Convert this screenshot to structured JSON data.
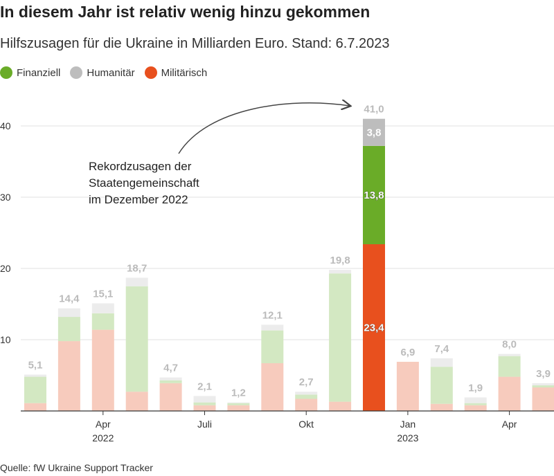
{
  "title": "In diesem Jahr ist relativ wenig hinzu gekommen",
  "subtitle": "Hilfszusagen für die Ukraine in Milliarden Euro. Stand: 6.7.2023",
  "source": "Quelle: fW Ukraine Support Tracker",
  "colors": {
    "finanziell": "#6aac28",
    "humanitaer": "#bdbdbd",
    "militaerisch": "#e8501e",
    "finanziell_light": "#d3e8c2",
    "humanitaer_light": "#ececec",
    "militaerisch_light": "#f7cbbd"
  },
  "legend": [
    {
      "label": "Finanziell",
      "color": "#6aac28"
    },
    {
      "label": "Humanitär",
      "color": "#bdbdbd"
    },
    {
      "label": "Militärisch",
      "color": "#e8501e"
    }
  ],
  "chart_data": {
    "type": "bar",
    "stacked": true,
    "ylim": [
      0,
      43
    ],
    "yticks": [
      10,
      20,
      30,
      40
    ],
    "grid": true,
    "legend_position": "top-left",
    "x": [
      "2022-02",
      "2022-03",
      "2022-04",
      "2022-05",
      "2022-06",
      "2022-07",
      "2022-08",
      "2022-09",
      "2022-10",
      "2022-11",
      "2022-12",
      "2023-01",
      "2023-02",
      "2023-03",
      "2023-04",
      "2023-05"
    ],
    "totals": [
      5.1,
      14.4,
      15.1,
      18.7,
      4.7,
      2.1,
      1.2,
      12.1,
      2.7,
      19.8,
      41.0,
      6.9,
      7.4,
      1.9,
      8.0,
      3.9
    ],
    "total_labels": [
      "5,1",
      "14,4",
      "15,1",
      "18,7",
      "4,7",
      "2,1",
      "1,2",
      "12,1",
      "2,7",
      "19,8",
      "41,0",
      "6,9",
      "7,4",
      "1,9",
      "8,0",
      "3,9"
    ],
    "series": [
      {
        "name": "Militärisch",
        "values": [
          1.1,
          9.8,
          11.4,
          2.7,
          3.9,
          0.8,
          0.8,
          6.7,
          1.7,
          1.3,
          23.4,
          6.9,
          1.0,
          0.8,
          4.8,
          3.3
        ]
      },
      {
        "name": "Finanziell",
        "values": [
          3.7,
          3.4,
          2.3,
          14.8,
          0.4,
          0.4,
          0.3,
          4.6,
          0.6,
          18.0,
          13.8,
          0.0,
          5.2,
          0.3,
          2.9,
          0.3
        ]
      },
      {
        "name": "Humanitär",
        "values": [
          0.3,
          1.2,
          1.4,
          1.2,
          0.4,
          0.9,
          0.1,
          0.8,
          0.4,
          0.5,
          3.8,
          0.0,
          1.2,
          0.8,
          0.3,
          0.3
        ]
      }
    ],
    "highlight_index": 10,
    "highlight_segment_labels": {
      "Militärisch": "23,4",
      "Finanziell": "13,8",
      "Humanitär": "3,8"
    },
    "xtick_labels": [
      {
        "index": 2,
        "label": "Apr",
        "sub": "2022"
      },
      {
        "index": 5,
        "label": "Juli",
        "sub": ""
      },
      {
        "index": 8,
        "label": "Okt",
        "sub": ""
      },
      {
        "index": 11,
        "label": "Jan",
        "sub": "2023"
      },
      {
        "index": 14,
        "label": "Apr",
        "sub": ""
      }
    ],
    "annotation": [
      "Rekordzusagen der",
      "Staatengemeinschaft",
      "im Dezember 2022"
    ]
  }
}
